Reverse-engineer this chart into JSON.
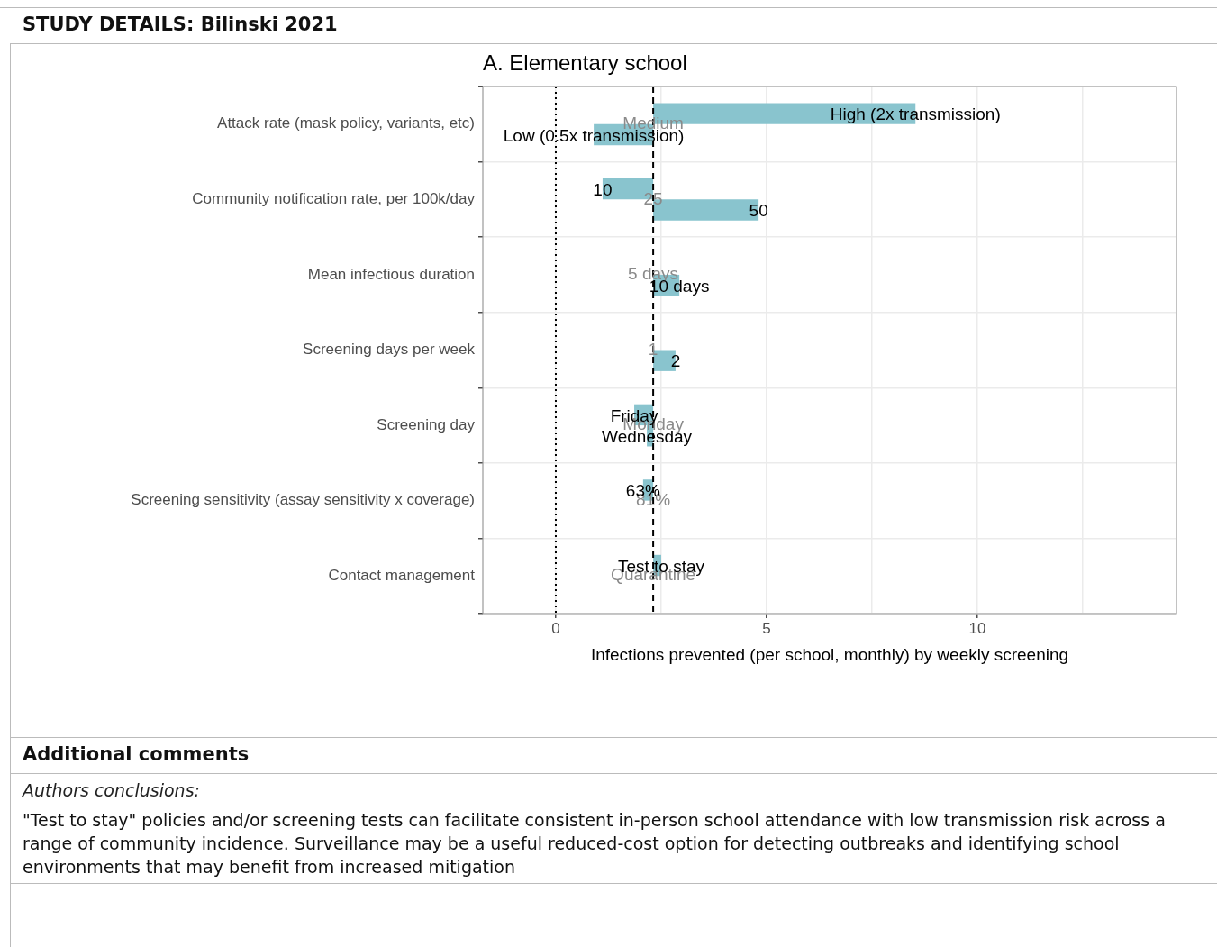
{
  "chart_data": {
    "type": "bar",
    "orientation": "horizontal",
    "title": "A. Elementary school",
    "xlabel": "Infections prevented (per school, monthly) by weekly screening",
    "categories": [
      "Attack rate (mask policy, variants, etc)",
      "Community notification rate, per 100k/day",
      "Mean infectious duration",
      "Screening days per week",
      "Screening day",
      "Screening sensitivity (assay sensitivity x coverage)",
      "Contact management"
    ],
    "series": [
      {
        "color": "#89c4ce",
        "base": [
          2.31,
          2.31,
          null,
          null,
          2.31,
          2.31,
          2.31
        ],
        "values": [
          6.22,
          -1.2,
          null,
          null,
          -0.45,
          -0.24,
          0.19
        ]
      },
      {
        "color": "#89c4ce",
        "base": [
          2.31,
          2.31,
          2.31,
          2.31,
          2.31,
          null,
          null
        ],
        "values": [
          -1.41,
          2.5,
          0.62,
          0.53,
          -0.15,
          null,
          null
        ]
      }
    ],
    "xlim": [
      -1.73,
      14.72
    ],
    "xticks": [
      0,
      {
        "value": 2.5,
        "label": null
      },
      5,
      {
        "value": 7.5,
        "label": null
      },
      10,
      {
        "value": 12.5,
        "label": null
      }
    ],
    "grid": true,
    "legend": false,
    "ref_lines": [
      {
        "axis": "x",
        "value": 0,
        "line_style": "dotted",
        "color": "#000000"
      },
      {
        "axis": "x",
        "value": 2.31,
        "line_style": "dashed",
        "color": "#000000"
      }
    ],
    "annotations": [
      "STUDY DETAILS: Bilinski 2021",
      "Additional comments",
      "Authors conclusions:",
      "\"Test to stay\" policies and/or screening tests can facilitate consistent in-person school attendance with low transmission risk across a range of community incidence. Surveillance may be a useful reduced-cost option for detecting outbreaks and identifying school environments that may benefit from increased mitigation",
      {
        "text": "Medium",
        "x": 2.31,
        "y": "Attack rate (mask policy, variants, etc)"
      },
      {
        "text": "25",
        "x": 2.31,
        "y": "Community notification rate, per 100k/day"
      },
      {
        "text": "5 days",
        "x": 2.31,
        "y": "Mean infectious duration"
      },
      {
        "text": "1",
        "x": 2.31,
        "y": "Screening days per week"
      },
      {
        "text": "Monday",
        "x": 2.31,
        "y": "Screening day"
      },
      {
        "text": "81%",
        "x": 2.31,
        "y": "Screening sensitivity (assay sensitivity x coverage)"
      },
      {
        "text": "Quarantine",
        "x": 2.31,
        "y": "Contact management"
      },
      {
        "text": "High (2x transmission)",
        "x": 8.53,
        "y": "Attack rate (mask policy, variants, etc)"
      },
      {
        "text": "Low (0.5x transmission)",
        "x": 0.9,
        "y": "Attack rate (mask policy, variants, etc)"
      },
      {
        "text": "10",
        "x": 1.11,
        "y": "Community notification rate, per 100k/day"
      },
      {
        "text": "50",
        "x": 4.81,
        "y": "Community notification rate, per 100k/day"
      },
      {
        "text": "10 days",
        "x": 2.93,
        "y": "Mean infectious duration"
      },
      {
        "text": "2",
        "x": 2.84,
        "y": "Screening days per week"
      },
      {
        "text": "Friday",
        "x": 1.86,
        "y": "Screening day"
      },
      {
        "text": "Wednesday",
        "x": 2.16,
        "y": "Screening day"
      },
      {
        "text": "63%",
        "x": 2.07,
        "y": "Screening sensitivity (assay sensitivity x coverage)"
      },
      {
        "text": "Test to stay",
        "x": 2.5,
        "y": "Contact management"
      }
    ]
  }
}
